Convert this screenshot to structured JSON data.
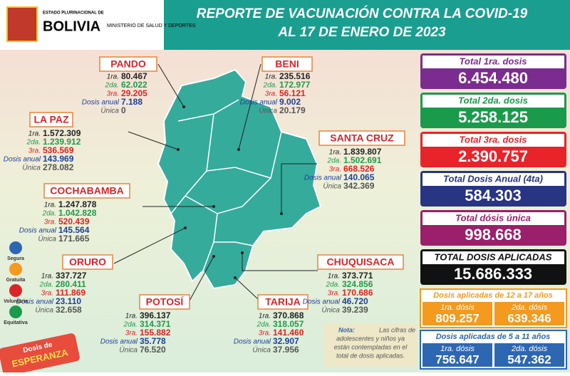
{
  "header": {
    "logo_small": "ESTADO PLURINACIONAL DE",
    "logo_big": "BOLIVIA",
    "ministry": "MINISTERIO DE SALUD Y DEPORTES",
    "title": "REPORTE DE VACUNACIÓN CONTRA LA COVID-19",
    "subtitle": "AL 17 DE ENERO  DE 2023"
  },
  "departments": [
    {
      "name": "PANDO",
      "rows": [
        [
          "1ra.",
          "80.467"
        ],
        [
          "2da.",
          "62.022"
        ],
        [
          "3ra.",
          "29.205"
        ],
        [
          "Dosis anual",
          "7.188"
        ],
        [
          "Única",
          "0"
        ]
      ]
    },
    {
      "name": "BENI",
      "rows": [
        [
          "1ra.",
          "235.516"
        ],
        [
          "2da.",
          "172.977"
        ],
        [
          "3ra.",
          "56.121"
        ],
        [
          "Dosis anual",
          "9.002"
        ],
        [
          "Única",
          "20.179"
        ]
      ]
    },
    {
      "name": "LA PAZ",
      "rows": [
        [
          "1ra.",
          "1.572.309"
        ],
        [
          "2da.",
          "1.239.912"
        ],
        [
          "3ra.",
          "536.569"
        ],
        [
          "Dosis anual",
          "143.969"
        ],
        [
          "Única",
          "278.082"
        ]
      ]
    },
    {
      "name": "SANTA CRUZ",
      "rows": [
        [
          "1ra.",
          "1.839.807"
        ],
        [
          "2da.",
          "1.502.691"
        ],
        [
          "3ra.",
          "668.526"
        ],
        [
          "Dosis anual",
          "140.065"
        ],
        [
          "Única",
          "342.369"
        ]
      ]
    },
    {
      "name": "COCHABAMBA",
      "rows": [
        [
          "1ra.",
          "1.247.878"
        ],
        [
          "2da.",
          "1.042.828"
        ],
        [
          "3ra.",
          "520.439"
        ],
        [
          "Dosis anual",
          "145.564"
        ],
        [
          "Única",
          "171.665"
        ]
      ]
    },
    {
      "name": "ORURO",
      "rows": [
        [
          "1ra.",
          "337.727"
        ],
        [
          "2da.",
          "280.411"
        ],
        [
          "3ra.",
          "111.869"
        ],
        [
          "Dosis anual",
          "23.110"
        ],
        [
          "Única",
          "32.658"
        ]
      ]
    },
    {
      "name": "POTOSÍ",
      "rows": [
        [
          "1ra.",
          "396.137"
        ],
        [
          "2da.",
          "314.371"
        ],
        [
          "3ra.",
          "155.882"
        ],
        [
          "Dosis anual",
          "35.778"
        ],
        [
          "Única",
          "76.520"
        ]
      ]
    },
    {
      "name": "TARIJA",
      "rows": [
        [
          "1ra.",
          "370.868"
        ],
        [
          "2da.",
          "318.057"
        ],
        [
          "3ra.",
          "141.460"
        ],
        [
          "Dosis anual",
          "32.907"
        ],
        [
          "Única",
          "37.956"
        ]
      ]
    },
    {
      "name": "CHUQUISACA",
      "rows": [
        [
          "1ra.",
          "373.771"
        ],
        [
          "2da.",
          "324.856"
        ],
        [
          "3ra.",
          "170.686"
        ],
        [
          "Dosis anual",
          "46.720"
        ],
        [
          "Única",
          "39.239"
        ]
      ]
    }
  ],
  "totals": [
    {
      "label": "Total 1ra. dosis",
      "value": "6.454.480"
    },
    {
      "label": "Total 2da. dosis",
      "value": "5.258.125"
    },
    {
      "label": "Total 3ra. dosis",
      "value": "2.390.757"
    },
    {
      "label": "Total Dosis Anual (4ta)",
      "value": "584.303"
    },
    {
      "label": "Total dósis única",
      "value": "998.668"
    },
    {
      "label": "TOTAL DOSIS APLICADAS",
      "value": "15.686.333"
    }
  ],
  "groups": [
    {
      "title": "Dosis aplicadas de 12 a 17 años",
      "items": [
        [
          "1ra. dósis",
          "809.257"
        ],
        [
          "2da. dósis",
          "639.346"
        ]
      ]
    },
    {
      "title": "Dosis aplicadas de 5 a 11 años",
      "items": [
        [
          "1ra. dósis",
          "756.647"
        ],
        [
          "2da. dósis",
          "547.362"
        ]
      ]
    }
  ],
  "note": {
    "bold": "Nota:",
    "lines": [
      "Las cifras de",
      "adolescentes y niños ya",
      "están contempladas en el",
      "total de dosis aplicadas."
    ]
  },
  "features": [
    "Segura",
    "Gratuita",
    "Voluntaria",
    "Equitativa"
  ],
  "badge": {
    "top": "Dosis de",
    "bottom": "ESPERANZA"
  }
}
